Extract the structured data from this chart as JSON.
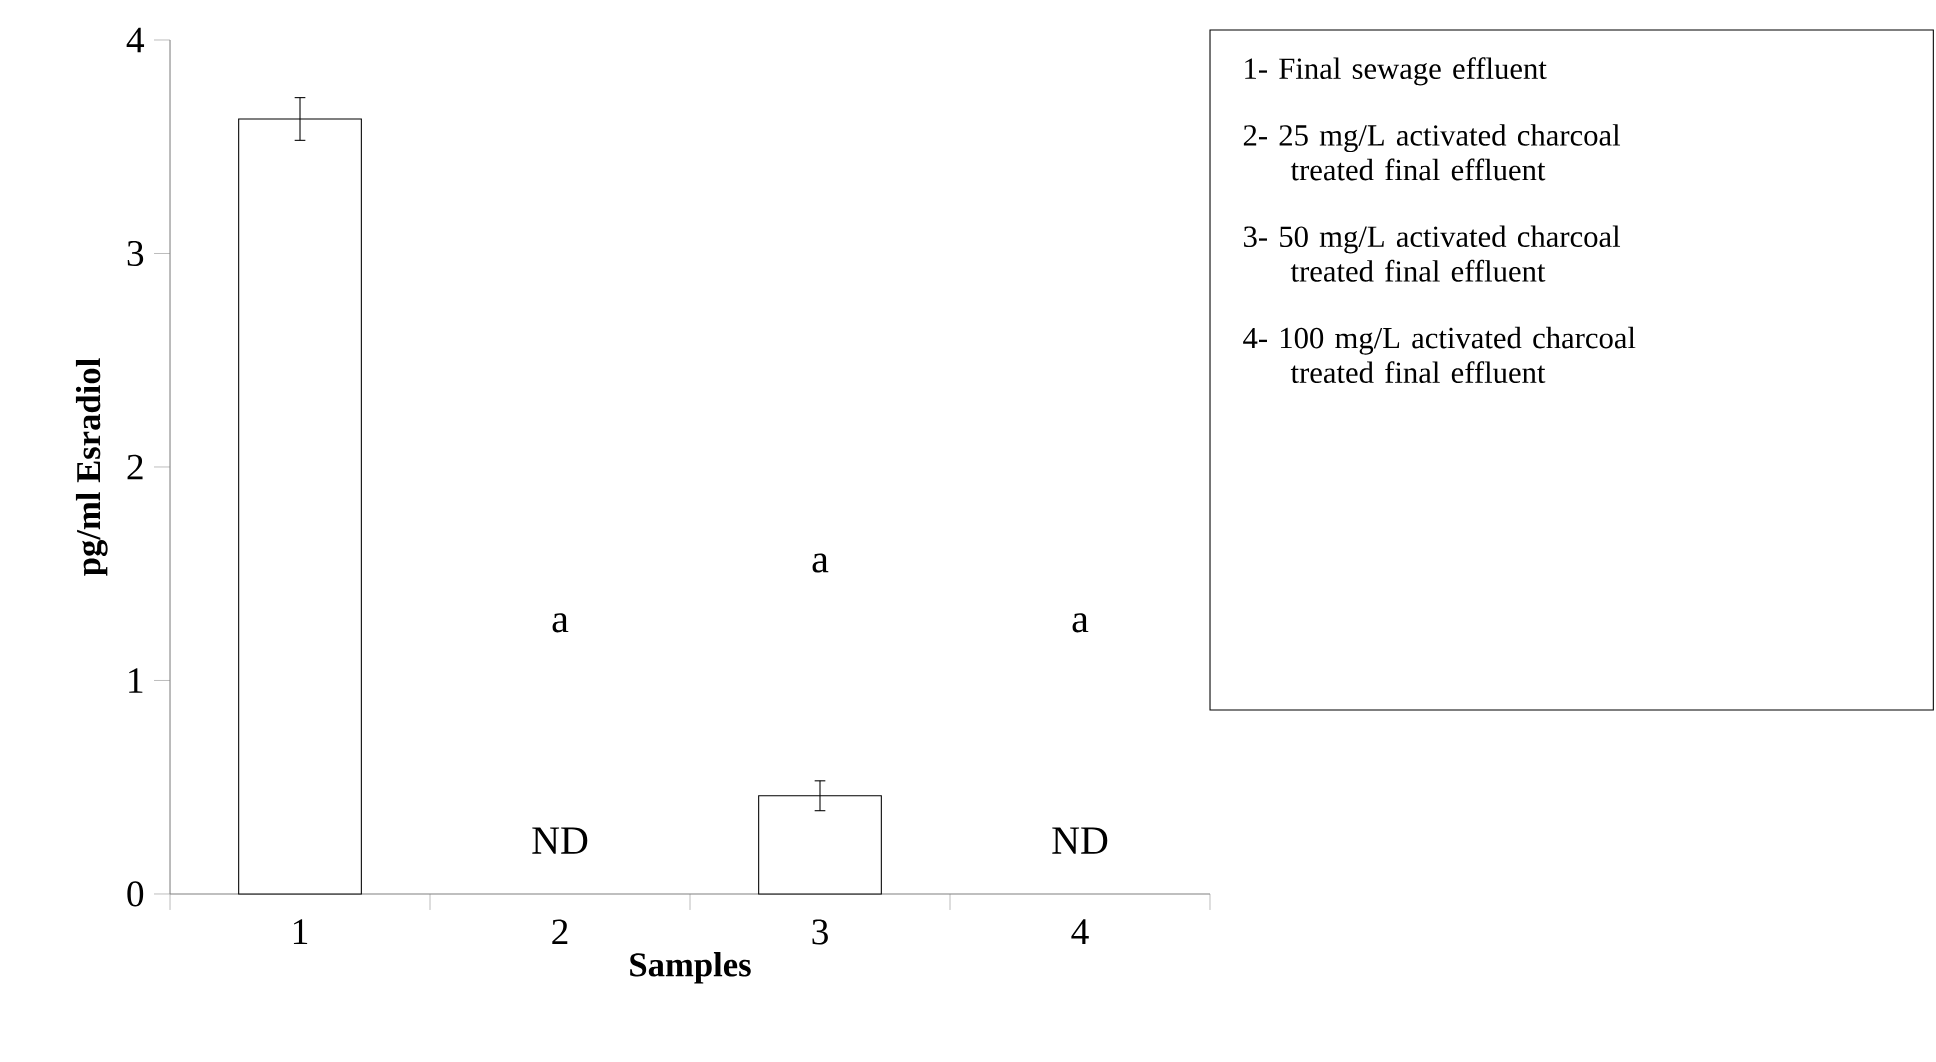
{
  "chart_data": {
    "type": "bar",
    "xlabel": "Samples",
    "ylabel": "pg/ml Esradiol",
    "categories": [
      "1",
      "2",
      "3",
      "4"
    ],
    "values": [
      3.63,
      null,
      0.46,
      null
    ],
    "errors": [
      0.1,
      null,
      0.07,
      null
    ],
    "color": "#ffffff",
    "ylim": [
      0,
      4
    ],
    "yticks": [
      0,
      1,
      2,
      3,
      4
    ],
    "annotations": [
      "a",
      "a",
      "a",
      "ND",
      "ND",
      "1- Final sewage effluent",
      "2- 25 mg/L activated charcoal treated final effluent",
      "3- 50 mg/L activated charcoal treated final effluent",
      "4- 100 mg/L activated charcoal treated final effluent"
    ]
  }
}
